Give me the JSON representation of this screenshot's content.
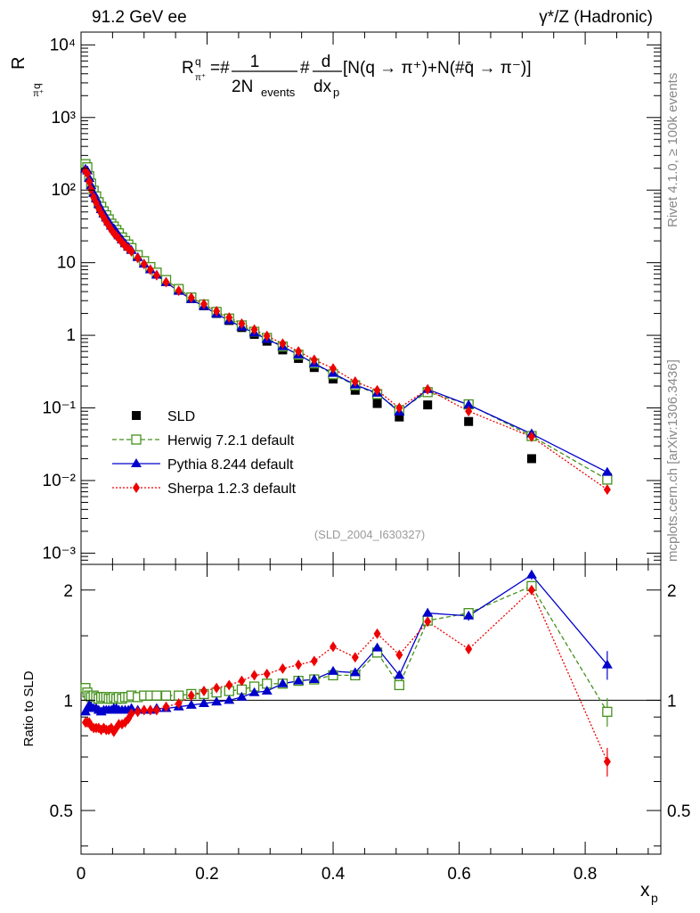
{
  "chart_data": {
    "type": "scatter",
    "header_left": "91.2 GeV ee",
    "header_right": "γ*/Z (Hadronic)",
    "side_label_top": "Rivet 4.1.0, ≥ 100k events",
    "side_label_bottom": "mcplots.cern.ch [arXiv:1306.3436]",
    "analysis_tag": "(SLD_2004_I630327)",
    "ylabel": "R",
    "ylabel_sup": "q",
    "ylabel_sub": "π⁺",
    "formula": {
      "lhs": "R",
      "lhs_sup": "q",
      "lhs_sub": "π⁺",
      "eq": "=#",
      "numer": "1",
      "denom": "2N",
      "denom_sub": "events",
      "hash": "#",
      "d_numer": "d",
      "d_denom": "dx",
      "d_denom_sub": "p",
      "bracket": "[N(q → π⁺)+N(#q̄ → π⁻)]"
    },
    "xlabel": "x",
    "xlabel_sub": "p",
    "ratio_ylabel": "Ratio to SLD",
    "xlim": [
      0,
      0.92
    ],
    "ylim": [
      0.0007,
      15000
    ],
    "ratio_ylim": [
      0.38,
      2.35
    ],
    "x_ticks": [
      "0",
      "0.2",
      "0.4",
      "0.6",
      "0.8"
    ],
    "y_ticks": [
      "10⁻³",
      "10⁻²",
      "10⁻¹",
      "1",
      "10",
      "10²",
      "10³",
      "10⁴"
    ],
    "ratio_ticks": [
      "0.5",
      "1",
      "2"
    ],
    "x": [
      0.007,
      0.01,
      0.013,
      0.016,
      0.02,
      0.024,
      0.028,
      0.032,
      0.036,
      0.04,
      0.044,
      0.048,
      0.052,
      0.056,
      0.06,
      0.065,
      0.07,
      0.075,
      0.08,
      0.09,
      0.1,
      0.11,
      0.12,
      0.135,
      0.155,
      0.175,
      0.195,
      0.215,
      0.235,
      0.255,
      0.275,
      0.295,
      0.32,
      0.345,
      0.37,
      0.4,
      0.435,
      0.47,
      0.505,
      0.55,
      0.615,
      0.715,
      0.835
    ],
    "series": [
      {
        "name": "SLD",
        "color": "#000000",
        "marker": "square",
        "values": [
          210,
          195,
          150,
          120,
          95,
          80,
          67,
          58,
          50,
          44,
          39,
          34,
          31,
          28,
          25,
          22,
          19.5,
          17.5,
          15.5,
          12.5,
          10.2,
          8.5,
          7.1,
          5.6,
          4.2,
          3.2,
          2.55,
          2.0,
          1.6,
          1.28,
          1.03,
          0.83,
          0.63,
          0.48,
          0.36,
          0.25,
          0.175,
          0.115,
          0.075,
          0.11,
          0.065,
          0.02,
          0.011
        ],
        "ratio": []
      },
      {
        "name": "Herwig 7.2.1 default",
        "color": "#44911b",
        "marker": "open-square",
        "values": [
          228,
          206,
          155,
          123,
          98,
          82,
          68,
          59,
          51,
          45,
          39.5,
          34.5,
          31.5,
          28.2,
          25.4,
          22.3,
          19.9,
          17.8,
          15.9,
          12.7,
          10.5,
          8.7,
          7.3,
          5.78,
          4.34,
          3.32,
          2.66,
          2.1,
          1.7,
          1.37,
          1.12,
          0.92,
          0.7,
          0.54,
          0.41,
          0.29,
          0.205,
          0.155,
          0.093,
          0.165,
          0.112,
          0.041,
          0.0103
        ],
        "ratio": [
          1.08,
          1.05,
          1.03,
          1.02,
          1.03,
          1.02,
          1.01,
          1.02,
          1.02,
          1.02,
          1.01,
          1.01,
          1.02,
          1.01,
          1.02,
          1.01,
          1.02,
          1.02,
          1.03,
          1.02,
          1.03,
          1.03,
          1.03,
          1.03,
          1.03,
          1.04,
          1.04,
          1.05,
          1.06,
          1.07,
          1.09,
          1.11,
          1.11,
          1.13,
          1.14,
          1.17,
          1.17,
          1.35,
          1.1,
          1.65,
          1.73,
          2.05,
          0.93
        ]
      },
      {
        "name": "Pythia 8.244 default",
        "color": "#0000cc",
        "marker": "triangle",
        "values": [
          195,
          185,
          145,
          115,
          90,
          76,
          63,
          54,
          47,
          41.5,
          36.5,
          32,
          29.5,
          26.5,
          23.5,
          20.7,
          18.3,
          16.4,
          14.8,
          11.8,
          9.6,
          8.0,
          6.75,
          5.33,
          4.05,
          3.12,
          2.5,
          1.97,
          1.6,
          1.3,
          1.08,
          0.88,
          0.7,
          0.54,
          0.41,
          0.3,
          0.208,
          0.16,
          0.088,
          0.18,
          0.11,
          0.044,
          0.013
        ],
        "ratio": [
          0.93,
          0.95,
          0.97,
          0.96,
          0.95,
          0.95,
          0.94,
          0.93,
          0.94,
          0.94,
          0.94,
          0.94,
          0.95,
          0.95,
          0.94,
          0.94,
          0.94,
          0.94,
          0.95,
          0.94,
          0.94,
          0.94,
          0.95,
          0.95,
          0.96,
          0.97,
          0.98,
          0.99,
          1.0,
          1.02,
          1.05,
          1.06,
          1.11,
          1.13,
          1.14,
          1.2,
          1.19,
          1.39,
          1.17,
          1.73,
          1.7,
          2.2,
          1.25
        ]
      },
      {
        "name": "Sherpa 1.2.3 default",
        "color": "#ee0000",
        "marker": "diamond",
        "values": [
          182,
          170,
          130,
          102,
          80,
          67,
          56,
          48,
          42,
          36.5,
          32.5,
          28.5,
          25.5,
          23.5,
          21.5,
          19,
          17,
          15.6,
          14.3,
          11.6,
          9.6,
          8.0,
          6.7,
          5.4,
          4.1,
          3.3,
          2.7,
          2.15,
          1.76,
          1.45,
          1.2,
          0.98,
          0.77,
          0.6,
          0.46,
          0.35,
          0.23,
          0.175,
          0.1,
          0.18,
          0.09,
          0.04,
          0.0075
        ],
        "ratio": [
          0.87,
          0.87,
          0.87,
          0.85,
          0.84,
          0.84,
          0.84,
          0.83,
          0.84,
          0.83,
          0.83,
          0.84,
          0.82,
          0.84,
          0.86,
          0.86,
          0.87,
          0.89,
          0.92,
          0.93,
          0.94,
          0.94,
          0.94,
          0.96,
          0.98,
          1.03,
          1.06,
          1.08,
          1.1,
          1.13,
          1.17,
          1.18,
          1.22,
          1.25,
          1.28,
          1.4,
          1.31,
          1.52,
          1.33,
          1.64,
          1.38,
          2.0,
          0.68
        ]
      }
    ]
  }
}
